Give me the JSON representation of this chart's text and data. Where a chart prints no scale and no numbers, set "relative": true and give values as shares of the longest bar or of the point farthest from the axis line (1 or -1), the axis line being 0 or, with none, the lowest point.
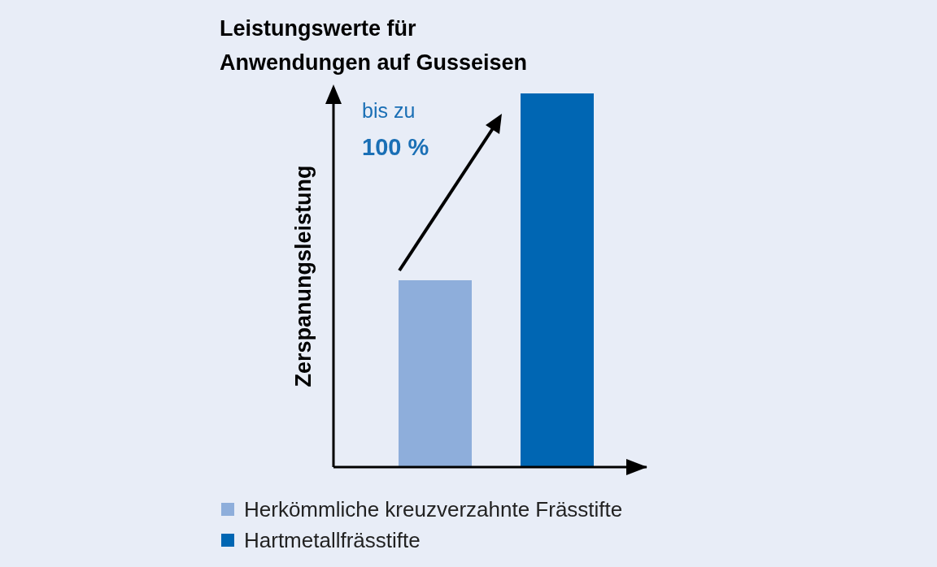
{
  "chart_data": {
    "type": "bar",
    "title": "Leistungswerte für\nAnwendungen auf Gusseisen",
    "ylabel": "Zerspanungsleistung",
    "annotations": [
      "bis zu",
      "100 %"
    ],
    "categories": [
      null
    ],
    "series": [
      {
        "name": "Herkömmliche kreuzverzahnte Frässtifte",
        "color": "#8eaedb",
        "values": [
          0.5
        ]
      },
      {
        "name": "Hartmetallfrässtifte",
        "color": "#0066b3",
        "values": [
          1
        ]
      }
    ],
    "relative": true,
    "legend": "bottom"
  }
}
